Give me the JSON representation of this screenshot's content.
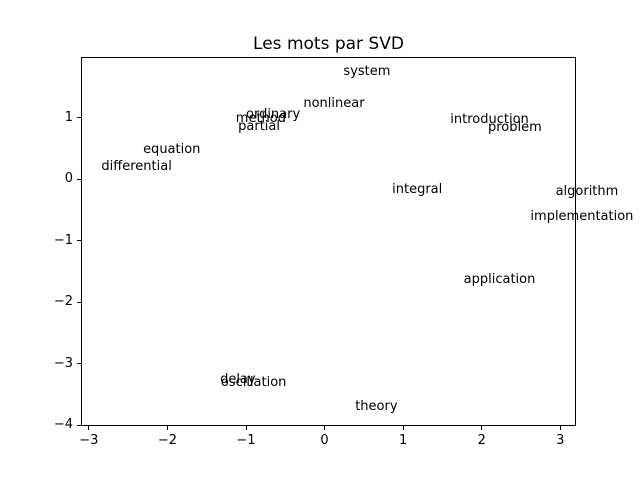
{
  "figure": {
    "background": "#ffffff",
    "text_color": "#000000",
    "spine_color": "#000000"
  },
  "chart_data": {
    "type": "scatter",
    "title": "Les mots par SVD",
    "xlabel": "",
    "ylabel": "",
    "xlim": [
      -3.1,
      3.2
    ],
    "ylim": [
      -4.01,
      1.99
    ],
    "grid": false,
    "legend": "none",
    "marker": "none (words rendered as text labels at their coordinates)",
    "xticks": {
      "values": [
        -3,
        -2,
        -1,
        0,
        1,
        2,
        3
      ],
      "labels": [
        "−3",
        "−2",
        "−1",
        "0",
        "1",
        "2",
        "3"
      ]
    },
    "yticks": {
      "values": [
        1,
        0,
        -1,
        -2,
        -3,
        -4
      ],
      "labels": [
        "1",
        "0",
        "−1",
        "−2",
        "−3",
        "−4"
      ]
    },
    "points": [
      {
        "label": "system",
        "x": 0.24,
        "y": 1.69
      },
      {
        "label": "nonlinear",
        "x": -0.27,
        "y": 1.17
      },
      {
        "label": "ordinary",
        "x": -1.0,
        "y": 1.0
      },
      {
        "label": "method",
        "x": -1.13,
        "y": 0.93
      },
      {
        "label": "partial",
        "x": -1.1,
        "y": 0.81
      },
      {
        "label": "introduction",
        "x": 1.6,
        "y": 0.91
      },
      {
        "label": "problem",
        "x": 2.08,
        "y": 0.79
      },
      {
        "label": "equation",
        "x": -2.31,
        "y": 0.43
      },
      {
        "label": "differential",
        "x": -2.84,
        "y": 0.16
      },
      {
        "label": "integral",
        "x": 0.86,
        "y": -0.22
      },
      {
        "label": "algorithm",
        "x": 2.94,
        "y": -0.25
      },
      {
        "label": "implementation",
        "x": 2.62,
        "y": -0.66
      },
      {
        "label": "application",
        "x": 1.77,
        "y": -1.69
      },
      {
        "label": "delay",
        "x": -1.33,
        "y": -3.31
      },
      {
        "label": "oscillation",
        "x": -1.32,
        "y": -3.36
      },
      {
        "label": "theory",
        "x": 0.39,
        "y": -3.75
      }
    ]
  }
}
